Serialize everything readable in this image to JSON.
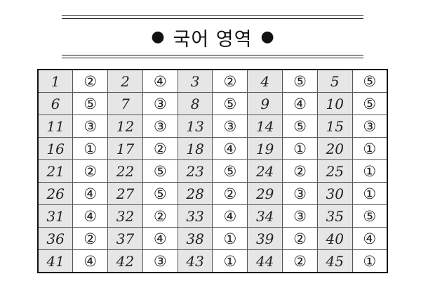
{
  "title": "국어 영역",
  "bullet_left": "●",
  "bullet_right": "●",
  "answer_key": [
    [
      {
        "q": "1",
        "a": "②"
      },
      {
        "q": "2",
        "a": "④"
      },
      {
        "q": "3",
        "a": "②"
      },
      {
        "q": "4",
        "a": "⑤"
      },
      {
        "q": "5",
        "a": "⑤"
      }
    ],
    [
      {
        "q": "6",
        "a": "⑤"
      },
      {
        "q": "7",
        "a": "③"
      },
      {
        "q": "8",
        "a": "⑤"
      },
      {
        "q": "9",
        "a": "④"
      },
      {
        "q": "10",
        "a": "⑤"
      }
    ],
    [
      {
        "q": "11",
        "a": "③"
      },
      {
        "q": "12",
        "a": "③"
      },
      {
        "q": "13",
        "a": "③"
      },
      {
        "q": "14",
        "a": "⑤"
      },
      {
        "q": "15",
        "a": "③"
      }
    ],
    [
      {
        "q": "16",
        "a": "①"
      },
      {
        "q": "17",
        "a": "②"
      },
      {
        "q": "18",
        "a": "④"
      },
      {
        "q": "19",
        "a": "①"
      },
      {
        "q": "20",
        "a": "①"
      }
    ],
    [
      {
        "q": "21",
        "a": "②"
      },
      {
        "q": "22",
        "a": "⑤"
      },
      {
        "q": "23",
        "a": "⑤"
      },
      {
        "q": "24",
        "a": "②"
      },
      {
        "q": "25",
        "a": "①"
      }
    ],
    [
      {
        "q": "26",
        "a": "④"
      },
      {
        "q": "27",
        "a": "⑤"
      },
      {
        "q": "28",
        "a": "②"
      },
      {
        "q": "29",
        "a": "③"
      },
      {
        "q": "30",
        "a": "①"
      }
    ],
    [
      {
        "q": "31",
        "a": "④"
      },
      {
        "q": "32",
        "a": "②"
      },
      {
        "q": "33",
        "a": "④"
      },
      {
        "q": "34",
        "a": "③"
      },
      {
        "q": "35",
        "a": "⑤"
      }
    ],
    [
      {
        "q": "36",
        "a": "②"
      },
      {
        "q": "37",
        "a": "④"
      },
      {
        "q": "38",
        "a": "①"
      },
      {
        "q": "39",
        "a": "②"
      },
      {
        "q": "40",
        "a": "④"
      }
    ],
    [
      {
        "q": "41",
        "a": "④"
      },
      {
        "q": "42",
        "a": "③"
      },
      {
        "q": "43",
        "a": "①"
      },
      {
        "q": "44",
        "a": "②"
      },
      {
        "q": "45",
        "a": "①"
      }
    ]
  ]
}
